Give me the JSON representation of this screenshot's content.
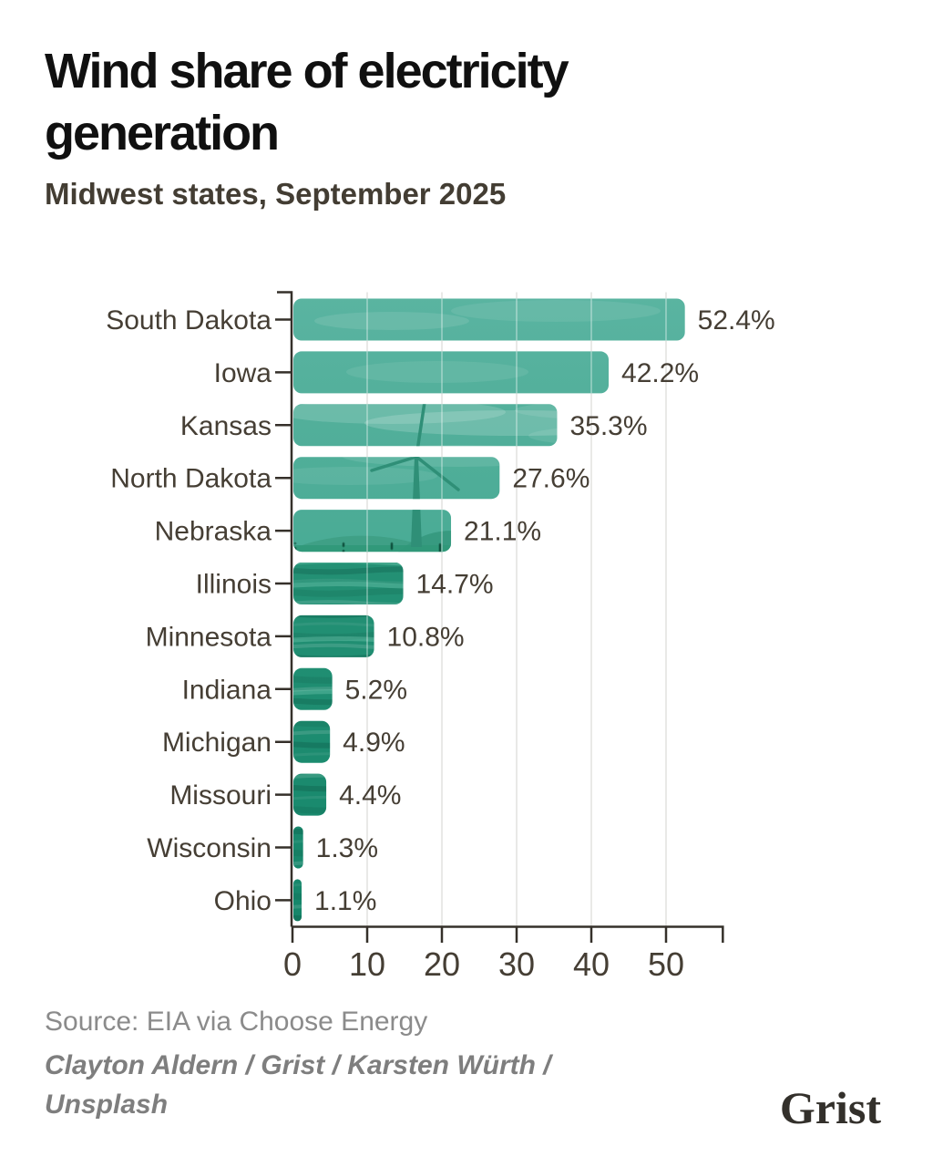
{
  "header": {
    "title": "Wind share of electricity generation",
    "subtitle": "Midwest states, September 2025"
  },
  "chart_data": {
    "type": "bar",
    "orientation": "horizontal",
    "title": "Wind share of electricity generation",
    "subtitle": "Midwest states, September 2025",
    "categories": [
      "South Dakota",
      "Iowa",
      "Kansas",
      "North Dakota",
      "Nebraska",
      "Illinois",
      "Minnesota",
      "Indiana",
      "Michigan",
      "Missouri",
      "Wisconsin",
      "Ohio"
    ],
    "values": [
      52.4,
      42.2,
      35.3,
      27.6,
      21.1,
      14.7,
      10.8,
      5.2,
      4.9,
      4.4,
      1.3,
      1.1
    ],
    "value_label_suffix": "%",
    "xlabel": "",
    "ylabel": "",
    "x_ticks": [
      0,
      10,
      20,
      30,
      40,
      50
    ],
    "xlim": [
      0,
      57.6
    ],
    "grid": true,
    "legend": false,
    "bar_texture": "wind-turbine-photo-with-teal-overlay"
  },
  "footer": {
    "source": "Source: EIA via Choose Energy",
    "credit": "Clayton Aldern / Grist / Karsten Würth / Unsplash",
    "logo": "Grist"
  },
  "colors": {
    "background": "#ffffff",
    "bar_sky_teal": "#50ae99",
    "bar_sky_light": "#5ab4a1",
    "bar_water_teal": "#1f8c71",
    "bar_water_dark": "#15866a",
    "turbine": "#2f8f77",
    "axis": "#35302a",
    "text_dark": "#453e34",
    "title": "#101010",
    "subtitle": "#433d33",
    "muted": "#8b8b8b",
    "credit_gray": "#7e7e7e",
    "gridline": "#e9e9e7"
  }
}
